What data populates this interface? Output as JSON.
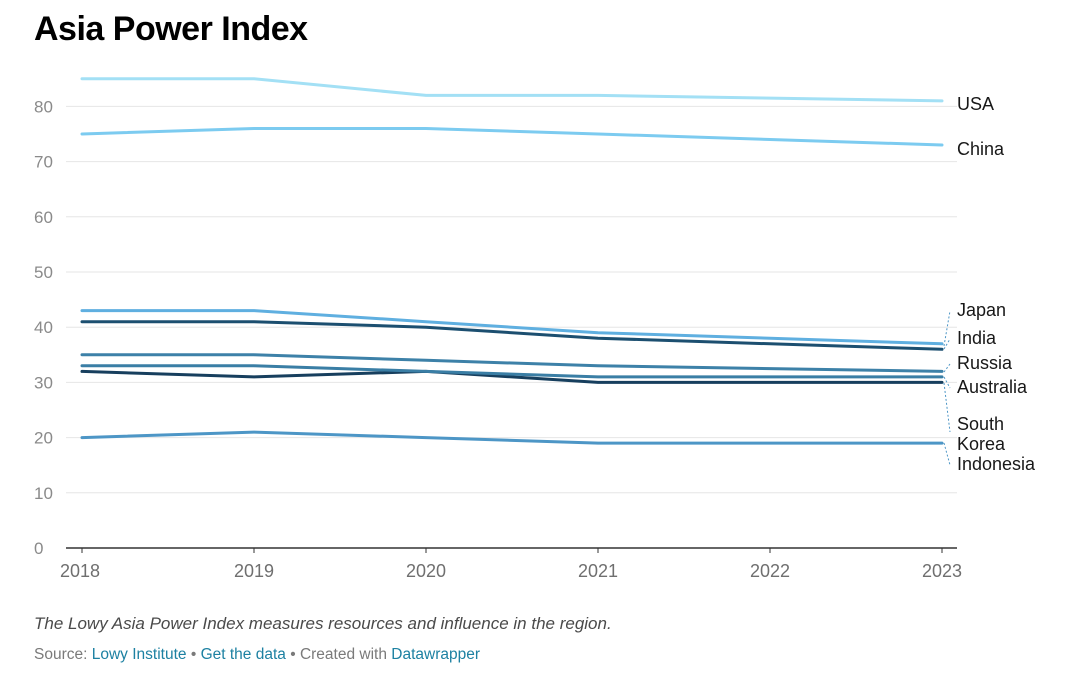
{
  "title": "Asia Power Index",
  "notes": "The Lowy Asia Power Index measures resources and influence in the region.",
  "footer": {
    "source_prefix": "Source:",
    "source_link": "Lowy Institute",
    "separator": "•",
    "data_link": "Get the data",
    "created_with": "Created with",
    "tool_link": "Datawrapper"
  },
  "colors": {
    "link": "#1d81a2",
    "grid": "#e6e6e6",
    "axis": "#333333"
  },
  "chart_data": {
    "type": "line",
    "x": [
      2018,
      2019,
      2020,
      2021,
      2022,
      2023
    ],
    "x_tick_labels": [
      "2018",
      "2019",
      "2020",
      "2021",
      "2022",
      "2023"
    ],
    "y_ticks": [
      0,
      10,
      20,
      30,
      40,
      50,
      60,
      70,
      80
    ],
    "y_tick_labels": [
      "0",
      "10",
      "20",
      "30",
      "40",
      "50",
      "60",
      "70",
      "80"
    ],
    "ylim": [
      0,
      85
    ],
    "grid": true,
    "legend": "direct labels at line ends (right)",
    "series": [
      {
        "name": "USA",
        "values": [
          85,
          85,
          82,
          82,
          81.5,
          81
        ],
        "color": "#a3e0f5"
      },
      {
        "name": "China",
        "values": [
          75,
          76,
          76,
          75,
          74,
          73
        ],
        "color": "#7ccbf0"
      },
      {
        "name": "Japan",
        "values": [
          43,
          43,
          41,
          39,
          38,
          37
        ],
        "color": "#5fafe0"
      },
      {
        "name": "India",
        "values": [
          41,
          41,
          40,
          38,
          37,
          36
        ],
        "color": "#1c4f70"
      },
      {
        "name": "Russia",
        "values": [
          35,
          35,
          34,
          33,
          32.5,
          32
        ],
        "color": "#3d81a8"
      },
      {
        "name": "Australia",
        "values": [
          33,
          33,
          32,
          31,
          31,
          31
        ],
        "color": "#3a7ea5"
      },
      {
        "name": "South Korea",
        "values": [
          32,
          31,
          32,
          30,
          30,
          30
        ],
        "color": "#173f5e"
      },
      {
        "name": "Indonesia",
        "values": [
          20,
          21,
          20,
          19,
          19,
          19
        ],
        "color": "#4d96c6"
      }
    ],
    "label_lines": [
      {
        "key": "usa",
        "lines": [
          "USA"
        ]
      },
      {
        "key": "china",
        "lines": [
          "China"
        ]
      },
      {
        "key": "japan",
        "lines": [
          "Japan"
        ]
      },
      {
        "key": "india",
        "lines": [
          "India"
        ]
      },
      {
        "key": "russia",
        "lines": [
          "Russia"
        ]
      },
      {
        "key": "australia",
        "lines": [
          "Australia"
        ]
      },
      {
        "key": "south-korea",
        "lines": [
          "South",
          "Korea"
        ]
      },
      {
        "key": "indonesia",
        "lines": [
          "Indonesia"
        ]
      }
    ]
  }
}
